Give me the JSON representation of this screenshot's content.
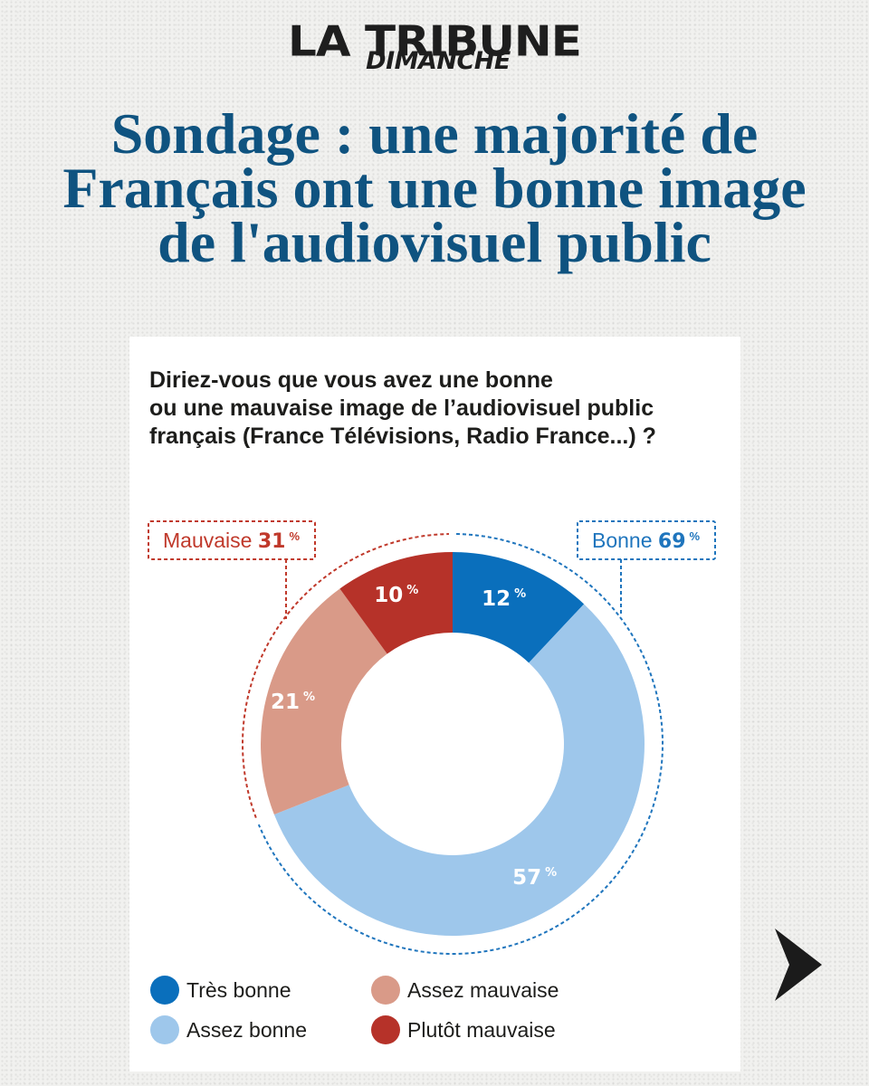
{
  "brand": {
    "name": "LA TRIBUNE",
    "edition": "DIMANCHE"
  },
  "headline": "Sondage : une majorité de Français ont une bonne image de l'audiovisuel public",
  "question": {
    "lines": [
      "Diriez-vous que vous avez une bonne",
      "ou une mauvaise image de l’audiovisuel public",
      "français (France Télévisions, Radio France...) ?"
    ]
  },
  "groups": {
    "negative": {
      "label": "Mauvaise",
      "value": "31",
      "unit": "%",
      "color": "#c0392b"
    },
    "positive": {
      "label": "Bonne",
      "value": "69",
      "unit": "%",
      "color": "#1f75bd"
    }
  },
  "chart_data": {
    "type": "pie",
    "variant": "donut",
    "unit": "%",
    "slices": [
      {
        "label": "Très bonne",
        "value": 12,
        "color": "#0a6fbc"
      },
      {
        "label": "Assez bonne",
        "value": 57,
        "color": "#9ec7eb"
      },
      {
        "label": "Assez mauvaise",
        "value": 21,
        "color": "#d99a88"
      },
      {
        "label": "Plutôt mauvaise",
        "value": 10,
        "color": "#b63229"
      }
    ],
    "legend": [
      "Très bonne",
      "Assez bonne",
      "Assez mauvaise",
      "Plutôt mauvaise"
    ],
    "legend_position": "bottom"
  },
  "navigation": {
    "next_icon": "chevron-right-icon"
  }
}
